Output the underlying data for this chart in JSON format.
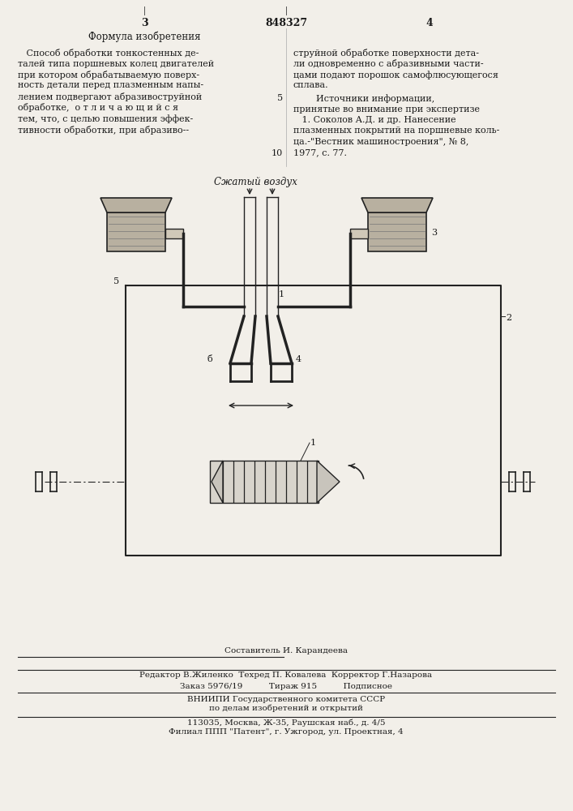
{
  "bg_color": "#f2efe9",
  "text_color": "#1a1a1a",
  "page_number_left": "3",
  "page_number_right": "4",
  "patent_number": "848327",
  "left_heading": "Формула изобретения",
  "left_text_lines": [
    "   Способ обработки тонкостенных де-",
    "талей типа поршневых колец двигателей",
    "при котором обрабатываемую поверх-",
    "ность детали перед плазменным напы-",
    "лением подвергают абразивоструйной",
    "обработке,  о т л и ч а ю щ и й с я",
    "тем, что, с целью повышения эффек-",
    "тивности обработки, при абразиво--"
  ],
  "right_text_lines": [
    "струйной обработке поверхности дета-",
    "ли одновременно с абразивными части-",
    "цами подают порошок самофлюсующегося",
    "сплава."
  ],
  "right_line5": "5",
  "sources_heading": "        Источники информации,",
  "sources_subheading": "принятые во внимание при экспертизе",
  "source1": "   1. Соколов А.Д. и др. Нанесение",
  "source2": "плазменных покрытий на поршневые коль-",
  "source3": "ца.-\"Вестник машиностроения\", № 8,",
  "line10": "10",
  "source4": "1977, с. 77.",
  "diagram_label_air": "Сжатый воздух",
  "label1": "1",
  "label2": "2",
  "label3": "3",
  "label4": "4",
  "label5": "5",
  "label6": "б",
  "footer_line1": "Составитель И. Карандеева",
  "footer_line2": "Редактор В.Жиленко  Техред П. Ковалева  Корректор Г.Назарова",
  "footer_line3": "Заказ 5976/19          Тираж 915          Подписное",
  "footer_line4": "ВНИИПИ Государственного комитета СССР",
  "footer_line5": "по делам изобретений и открытий",
  "footer_line6": "113035, Москва, Ж-35, Раушская наб., д. 4/5",
  "footer_line7": "Филиал ППП \"Патент\", г. Ужгород, ул. Проектная, 4"
}
